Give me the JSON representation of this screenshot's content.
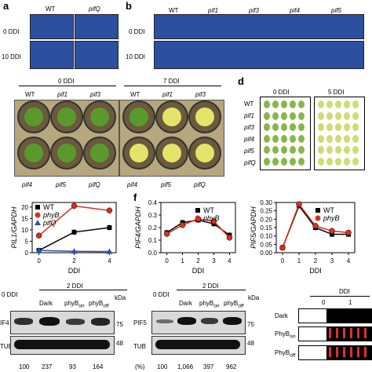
{
  "panel_a": {
    "letter": "a",
    "cols": [
      "WT",
      "pifQ"
    ],
    "rows": [
      "0 DDI",
      "10 DDI"
    ]
  },
  "panel_b": {
    "letter": "b",
    "cols": [
      "WT",
      "pif1",
      "pif3",
      "pif4",
      "pif5"
    ],
    "rows": [
      "0 DDI",
      "10 DDI"
    ]
  },
  "panel_c": {
    "group1_title": "0 DDI",
    "group2_title": "7 DDI",
    "top_labels": [
      "WT",
      "pif1",
      "pif3"
    ],
    "bottom_labels": [
      "pif4",
      "pif5",
      "pifQ"
    ]
  },
  "panel_d": {
    "letter": "d",
    "col1": "0 DDI",
    "col2": "5 DDI",
    "rows": [
      "WT",
      "pif1",
      "pif3",
      "pif4",
      "pif5",
      "pifQ"
    ]
  },
  "panel_e": {
    "ylabel": "PIL1/GAPDH",
    "xlabel": "DDI",
    "legend": [
      "WT",
      "phyB",
      "pifQ"
    ]
  },
  "panel_f": {
    "letter": "f",
    "ylabel_left": "PIF4/GAPDH",
    "ylabel_right": "PIF5/GAPDH",
    "xlabel": "DDI",
    "legend": [
      "WT",
      "phyB"
    ]
  },
  "chart_data": [
    {
      "type": "line",
      "ylabel": "PIL1/GAPDH",
      "xlabel": "DDI",
      "x": [
        0,
        2,
        4
      ],
      "xticks": [
        0,
        2,
        4
      ],
      "ylim": [
        0,
        22
      ],
      "yticks": [
        0,
        5,
        10,
        15,
        20
      ],
      "series": [
        {
          "name": "WT",
          "color": "#000000",
          "marker": "square",
          "values": [
            1,
            9,
            11
          ]
        },
        {
          "name": "phyB",
          "color": "#d7301f",
          "marker": "circle",
          "values": [
            7.5,
            20.5,
            18.5
          ]
        },
        {
          "name": "pifQ",
          "color": "#2b4eb3",
          "marker": "triangle",
          "values": [
            1,
            0.6,
            0.5
          ]
        }
      ]
    },
    {
      "type": "line",
      "ylabel": "PIF4/GAPDH",
      "xlabel": "DDI",
      "x": [
        0,
        1,
        2,
        3,
        4
      ],
      "xticks": [
        0,
        1,
        2,
        3,
        4
      ],
      "ylim": [
        0,
        0.4
      ],
      "yticks": [
        0,
        0.1,
        0.2,
        0.3,
        0.4
      ],
      "series": [
        {
          "name": "WT",
          "color": "#000000",
          "marker": "square",
          "values": [
            0.16,
            0.24,
            0.26,
            0.23,
            0.14
          ]
        },
        {
          "name": "phyB",
          "color": "#d7301f",
          "marker": "circle",
          "values": [
            0.15,
            0.22,
            0.27,
            0.25,
            0.12
          ]
        }
      ]
    },
    {
      "type": "line",
      "ylabel": "PIF5/GAPDH",
      "xlabel": "DDI",
      "x": [
        0,
        1,
        2,
        3,
        4
      ],
      "xticks": [
        0,
        1,
        2,
        3,
        4
      ],
      "ylim": [
        0,
        0.3
      ],
      "yticks": [
        0,
        0.05,
        0.1,
        0.15,
        0.2,
        0.25,
        0.3
      ],
      "series": [
        {
          "name": "WT",
          "color": "#000000",
          "marker": "square",
          "values": [
            0.03,
            0.28,
            0.15,
            0.11,
            0.11
          ]
        },
        {
          "name": "phyB",
          "color": "#d7301f",
          "marker": "circle",
          "values": [
            0.03,
            0.29,
            0.16,
            0.13,
            0.12
          ]
        }
      ]
    }
  ],
  "blot1": {
    "header_left": "0 DDI",
    "header_group": "2 DDI",
    "lanes": [
      "Dark",
      "phyB",
      "phyB"
    ],
    "lane_subs": [
      "",
      "on",
      "off"
    ],
    "kda": "kDa",
    "row1": "IF4",
    "row2": "TUB",
    "mw1": "75",
    "mw2": "48",
    "pct_label": "(%)",
    "pcts": [
      "100",
      "237",
      "93",
      "164"
    ]
  },
  "blot2": {
    "header_left": "0 DDI",
    "header_group": "2 DDI",
    "lanes": [
      "Dark",
      "phyB",
      "phyB"
    ],
    "lane_subs": [
      "",
      "on",
      "off"
    ],
    "kda": "kDa",
    "row1": "PIF5",
    "row2": "TUB",
    "mw1": "75",
    "mw2": "48",
    "pct_label": "(%)",
    "pcts": [
      "100",
      "1,066",
      "397",
      "962"
    ]
  },
  "schematic": {
    "title": "DDI",
    "ticks": [
      "0",
      "1"
    ],
    "rows": [
      "Dark",
      "PhyB",
      "PhyB"
    ],
    "subs": [
      "",
      "on",
      "off"
    ],
    "pulse_color": "#e0301e"
  }
}
